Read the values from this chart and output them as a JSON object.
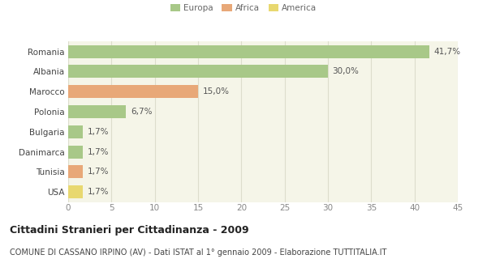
{
  "categories": [
    "Romania",
    "Albania",
    "Marocco",
    "Polonia",
    "Bulgaria",
    "Danimarca",
    "Tunisia",
    "USA"
  ],
  "values": [
    41.7,
    30.0,
    15.0,
    6.7,
    1.7,
    1.7,
    1.7,
    1.7
  ],
  "colors": [
    "#a8c888",
    "#a8c888",
    "#e8a878",
    "#a8c888",
    "#a8c888",
    "#a8c888",
    "#e8a878",
    "#e8d870"
  ],
  "labels": [
    "41,7%",
    "30,0%",
    "15,0%",
    "6,7%",
    "1,7%",
    "1,7%",
    "1,7%",
    "1,7%"
  ],
  "legend": [
    {
      "label": "Europa",
      "color": "#a8c888"
    },
    {
      "label": "Africa",
      "color": "#e8a878"
    },
    {
      "label": "America",
      "color": "#e8d870"
    }
  ],
  "xlim": [
    0,
    45
  ],
  "xticks": [
    0,
    5,
    10,
    15,
    20,
    25,
    30,
    35,
    40,
    45
  ],
  "title": "Cittadini Stranieri per Cittadinanza - 2009",
  "subtitle": "COMUNE DI CASSANO IRPINO (AV) - Dati ISTAT al 1° gennaio 2009 - Elaborazione TUTTITALIA.IT",
  "bar_height": 0.65,
  "background_color": "#ffffff",
  "plot_bg_color": "#f5f5e8",
  "grid_color": "#ddddcc",
  "label_fontsize": 7.5,
  "ytick_fontsize": 7.5,
  "xtick_fontsize": 7.5,
  "title_fontsize": 9,
  "subtitle_fontsize": 7
}
